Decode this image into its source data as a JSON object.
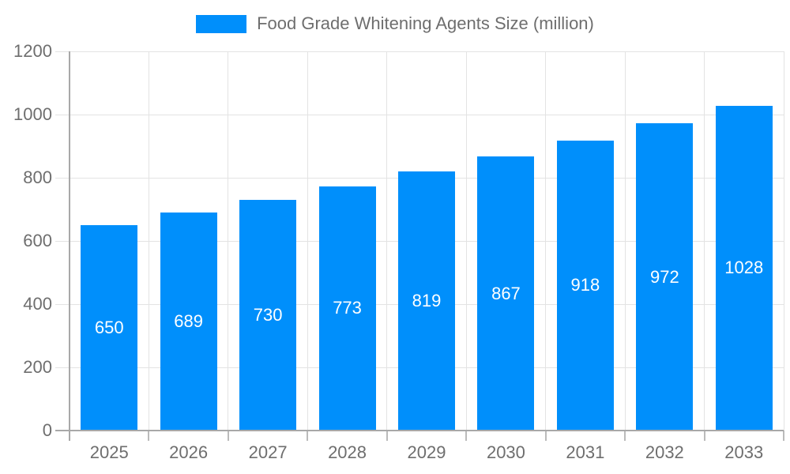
{
  "chart_data": {
    "type": "bar",
    "title": "Food Grade Whitening Agents Size (million)",
    "legend": {
      "position": "top",
      "entries": [
        "Food Grade Whitening Agents Size (million)"
      ]
    },
    "categories": [
      "2025",
      "2026",
      "2027",
      "2028",
      "2029",
      "2030",
      "2031",
      "2032",
      "2033"
    ],
    "series": [
      {
        "name": "Food Grade Whitening Agents Size (million)",
        "values": [
          650,
          689,
          730,
          773,
          819,
          867,
          918,
          972,
          1028
        ]
      }
    ],
    "data_labels": [
      "650",
      "689",
      "730",
      "773",
      "819",
      "867",
      "918",
      "972",
      "1028"
    ],
    "xlabel": "",
    "ylabel": "",
    "ylim": [
      0,
      1200
    ],
    "yticks": [
      0,
      200,
      400,
      600,
      800,
      1000,
      1200
    ],
    "grid": true,
    "colors": {
      "bar": "#008FFB",
      "bar_label_text": "#ffffff",
      "axis_text": "#6e6e6e",
      "grid_line": "#e3e3e3",
      "axis_line": "#a8a8a8",
      "background": "#ffffff"
    }
  }
}
